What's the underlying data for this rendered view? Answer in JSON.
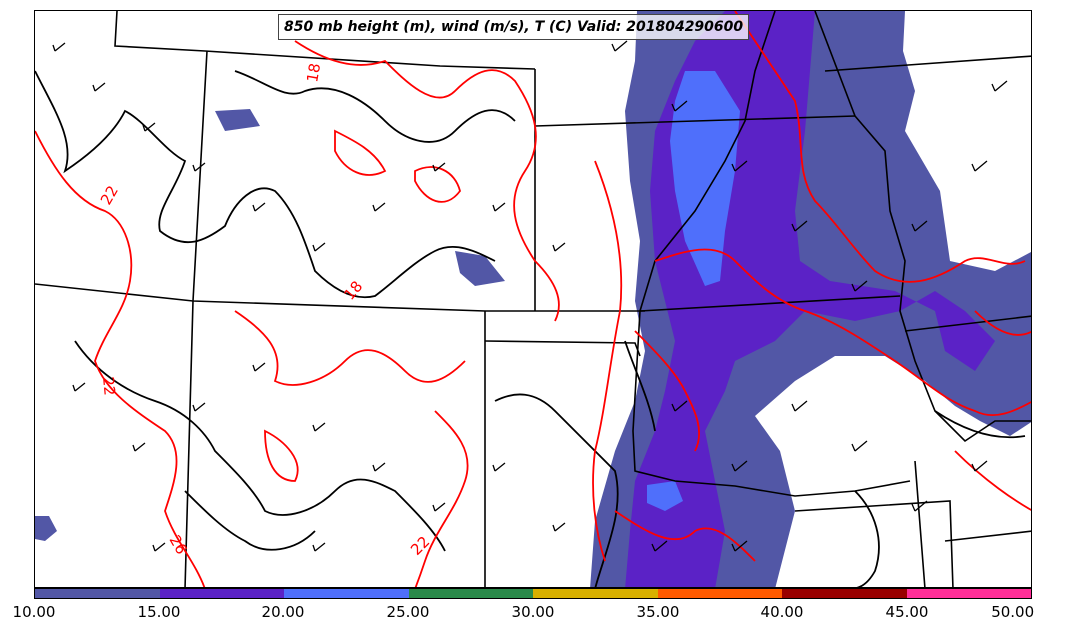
{
  "title": "850 mb height (m), wind (m/s), T (C) Valid: 201804290600",
  "colorbar": {
    "colors": [
      "#5257a6",
      "#5b22c6",
      "#4f6ffb",
      "#2a8a4a",
      "#d8b000",
      "#ff5b00",
      "#990000",
      "#ff2e98"
    ],
    "ticks": [
      "10.00",
      "15.00",
      "20.00",
      "25.00",
      "30.00",
      "35.00",
      "40.00",
      "45.00",
      "50.00"
    ]
  },
  "contour_labels": [
    {
      "text": "18"
    },
    {
      "text": "22"
    },
    {
      "text": "18"
    },
    {
      "text": "22"
    },
    {
      "text": "26"
    },
    {
      "text": "22"
    }
  ],
  "colors": {
    "temperature_contour": "#ff0000",
    "height_contour": "#000000",
    "boundary": "#000000"
  }
}
